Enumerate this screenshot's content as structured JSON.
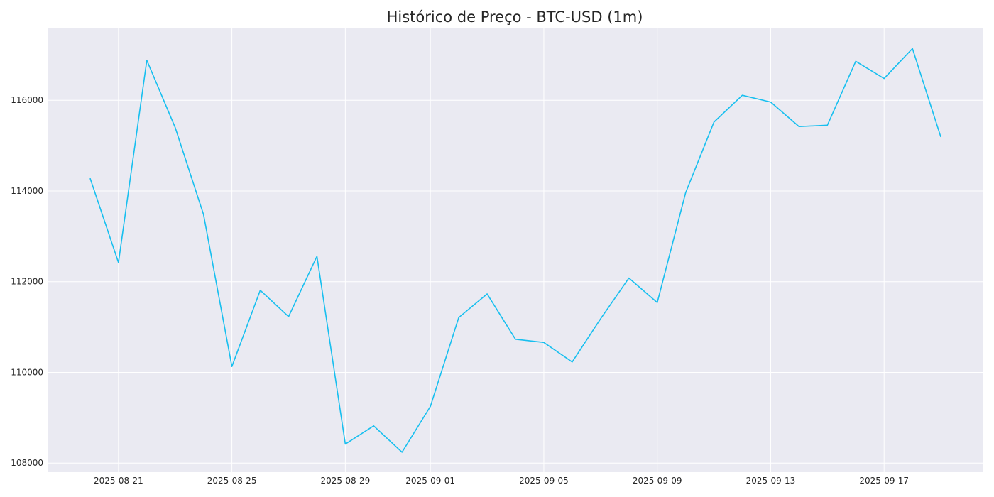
{
  "chart_data": {
    "type": "line",
    "title": "Histórico de Preço - BTC-USD (1m)",
    "xlabel": "",
    "ylabel": "",
    "x": [
      "2025-08-20",
      "2025-08-21",
      "2025-08-22",
      "2025-08-23",
      "2025-08-24",
      "2025-08-25",
      "2025-08-26",
      "2025-08-27",
      "2025-08-28",
      "2025-08-29",
      "2025-08-30",
      "2025-08-31",
      "2025-09-01",
      "2025-09-02",
      "2025-09-03",
      "2025-09-04",
      "2025-09-05",
      "2025-09-06",
      "2025-09-07",
      "2025-09-08",
      "2025-09-09",
      "2025-09-10",
      "2025-09-11",
      "2025-09-12",
      "2025-09-13",
      "2025-09-14",
      "2025-09-15",
      "2025-09-16",
      "2025-09-17",
      "2025-09-18",
      "2025-09-19"
    ],
    "series": [
      {
        "values": [
          114280,
          112420,
          116880,
          115400,
          113480,
          110130,
          111810,
          111230,
          112560,
          108420,
          108820,
          108240,
          109250,
          111210,
          111730,
          110730,
          110660,
          110230,
          111180,
          112080,
          111540,
          113960,
          115520,
          116110,
          115960,
          115420,
          115450,
          116860,
          116480,
          117140,
          115190
        ]
      }
    ],
    "x_ticks": [
      "2025-08-21",
      "2025-08-25",
      "2025-08-29",
      "2025-09-01",
      "2025-09-05",
      "2025-09-09",
      "2025-09-13",
      "2025-09-17"
    ],
    "y_ticks": [
      108000,
      110000,
      112000,
      114000,
      116000
    ],
    "xlim": [
      "2025-08-18.5",
      "2025-09-20.5"
    ],
    "ylim": [
      107800,
      117600
    ],
    "grid": true,
    "legend": "none",
    "colors": {
      "line": "#17bfef",
      "plot_background": "#eaeaf2",
      "grid": "#ffffff",
      "text": "#262626"
    }
  }
}
